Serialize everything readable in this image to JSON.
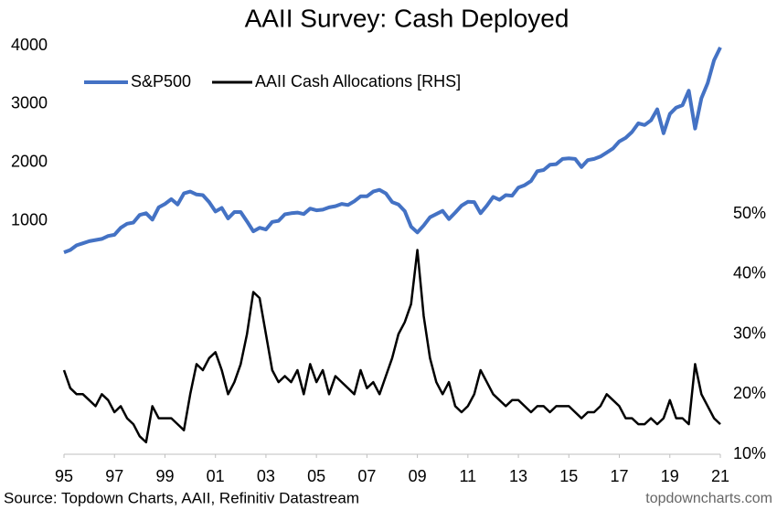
{
  "chart_data": {
    "type": "line",
    "title": "AAII Survey: Cash Deployed",
    "source": "Source: Topdown Charts, AAII, Refinitiv Datastream",
    "watermark": "topdowncharts.com",
    "x": [
      1995,
      1995.25,
      1995.5,
      1995.75,
      1996,
      1996.25,
      1996.5,
      1996.75,
      1997,
      1997.25,
      1997.5,
      1997.75,
      1998,
      1998.25,
      1998.5,
      1998.75,
      1999,
      1999.25,
      1999.5,
      1999.75,
      2000,
      2000.25,
      2000.5,
      2000.75,
      2001,
      2001.25,
      2001.5,
      2001.75,
      2002,
      2002.25,
      2002.5,
      2002.75,
      2003,
      2003.25,
      2003.5,
      2003.75,
      2004,
      2004.25,
      2004.5,
      2004.75,
      2005,
      2005.25,
      2005.5,
      2005.75,
      2006,
      2006.25,
      2006.5,
      2006.75,
      2007,
      2007.25,
      2007.5,
      2007.75,
      2008,
      2008.25,
      2008.5,
      2008.75,
      2009,
      2009.25,
      2009.5,
      2009.75,
      2010,
      2010.25,
      2010.5,
      2010.75,
      2011,
      2011.25,
      2011.5,
      2011.75,
      2012,
      2012.25,
      2012.5,
      2012.75,
      2013,
      2013.25,
      2013.5,
      2013.75,
      2014,
      2014.25,
      2014.5,
      2014.75,
      2015,
      2015.25,
      2015.5,
      2015.75,
      2016,
      2016.25,
      2016.5,
      2016.75,
      2017,
      2017.25,
      2017.5,
      2017.75,
      2018,
      2018.25,
      2018.5,
      2018.75,
      2019,
      2019.25,
      2019.5,
      2019.75,
      2020,
      2020.25,
      2020.5,
      2020.75,
      2021
    ],
    "series": [
      {
        "name": "S&P500",
        "color": "#4472c4",
        "axis": "y",
        "values": [
          460,
          500,
          580,
          615,
          650,
          670,
          690,
          740,
          760,
          880,
          950,
          970,
          1100,
          1130,
          1020,
          1230,
          1290,
          1370,
          1280,
          1470,
          1500,
          1450,
          1440,
          1320,
          1160,
          1220,
          1040,
          1150,
          1150,
          990,
          820,
          880,
          850,
          980,
          1000,
          1110,
          1130,
          1140,
          1115,
          1210,
          1180,
          1190,
          1230,
          1250,
          1290,
          1270,
          1335,
          1420,
          1420,
          1500,
          1530,
          1470,
          1320,
          1280,
          1165,
          900,
          800,
          920,
          1060,
          1115,
          1170,
          1030,
          1140,
          1260,
          1325,
          1320,
          1130,
          1260,
          1410,
          1360,
          1440,
          1430,
          1570,
          1610,
          1680,
          1850,
          1870,
          1960,
          1970,
          2060,
          2070,
          2060,
          1920,
          2040,
          2060,
          2100,
          2170,
          2240,
          2360,
          2420,
          2520,
          2670,
          2640,
          2720,
          2910,
          2500,
          2830,
          2940,
          2980,
          3230,
          2580,
          3100,
          3360,
          3750,
          3970
        ]
      },
      {
        "name": "AAII Cash Allocations [RHS]",
        "color": "#000000",
        "axis": "y2",
        "values": [
          24,
          21,
          20,
          20,
          19,
          18,
          20,
          19,
          17,
          18,
          16,
          15,
          13,
          12,
          18,
          16,
          16,
          16,
          15,
          14,
          20,
          25,
          24,
          26,
          27,
          24,
          20,
          22,
          25,
          30,
          37,
          36,
          30,
          24,
          22,
          23,
          22,
          24,
          20,
          25,
          22,
          24,
          20,
          23,
          22,
          21,
          20,
          24,
          21,
          22,
          20,
          23,
          26,
          30,
          32,
          35,
          44,
          33,
          26,
          22,
          20,
          22,
          18,
          17,
          18,
          20,
          24,
          22,
          20,
          19,
          18,
          19,
          19,
          18,
          17,
          18,
          18,
          17,
          18,
          18,
          18,
          17,
          16,
          17,
          17,
          18,
          20,
          19,
          18,
          16,
          16,
          15,
          15,
          16,
          15,
          16,
          19,
          16,
          16,
          15,
          25,
          20,
          18,
          16,
          15
        ]
      }
    ],
    "xlim": [
      1995,
      2021
    ],
    "xticks": [
      {
        "value": 1995,
        "label": "95"
      },
      {
        "value": 1997,
        "label": "97"
      },
      {
        "value": 1999,
        "label": "99"
      },
      {
        "value": 2001,
        "label": "01"
      },
      {
        "value": 2003,
        "label": "03"
      },
      {
        "value": 2005,
        "label": "05"
      },
      {
        "value": 2007,
        "label": "07"
      },
      {
        "value": 2009,
        "label": "09"
      },
      {
        "value": 2011,
        "label": "11"
      },
      {
        "value": 2013,
        "label": "13"
      },
      {
        "value": 2015,
        "label": "15"
      },
      {
        "value": 2017,
        "label": "17"
      },
      {
        "value": 2019,
        "label": "19"
      },
      {
        "value": 2021,
        "label": "21"
      }
    ],
    "ylim": [
      -3000,
      4000
    ],
    "yticks": [
      1000,
      2000,
      3000,
      4000
    ],
    "y2lim": [
      10,
      78
    ],
    "y2ticks": [
      {
        "value": 10,
        "label": "10%"
      },
      {
        "value": 20,
        "label": "20%"
      },
      {
        "value": 30,
        "label": "30%"
      },
      {
        "value": 40,
        "label": "40%"
      },
      {
        "value": 50,
        "label": "50%"
      }
    ],
    "grid": false
  }
}
